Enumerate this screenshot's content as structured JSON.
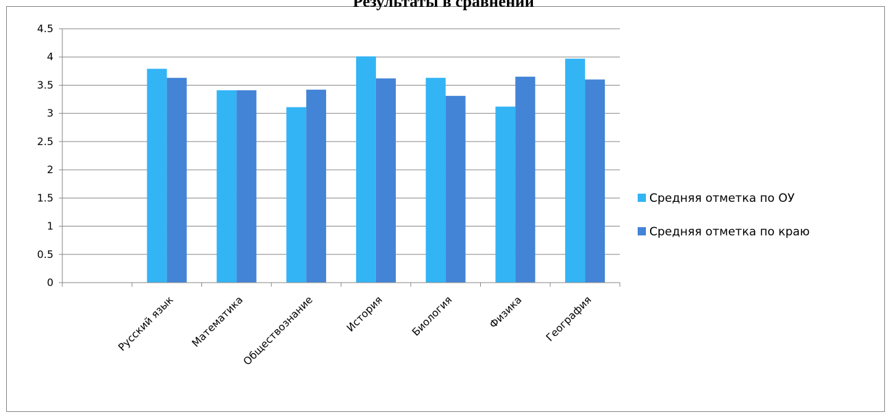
{
  "chart_data": {
    "type": "bar",
    "title": "Результаты в сравнении",
    "categories": [
      "",
      "Русский язык",
      "Математика",
      "Обществознание",
      "История",
      "Биология",
      "Физика",
      "География"
    ],
    "series": [
      {
        "name": "Средняя отметка  по ОУ",
        "color": "#33b4f5",
        "values": [
          null,
          3.79,
          3.41,
          3.11,
          4.01,
          3.63,
          3.12,
          3.97
        ]
      },
      {
        "name": "Средняя отметка  по краю",
        "color": "#4384d6",
        "values": [
          null,
          3.63,
          3.41,
          3.42,
          3.62,
          3.31,
          3.65,
          3.6
        ]
      }
    ],
    "ylim": [
      0,
      4.5
    ],
    "yticks": [
      "0",
      "0.5",
      "1",
      "1.5",
      "2",
      "2.5",
      "3",
      "3.5",
      "4",
      "4.5"
    ],
    "grid": true,
    "legend_position": "right"
  }
}
